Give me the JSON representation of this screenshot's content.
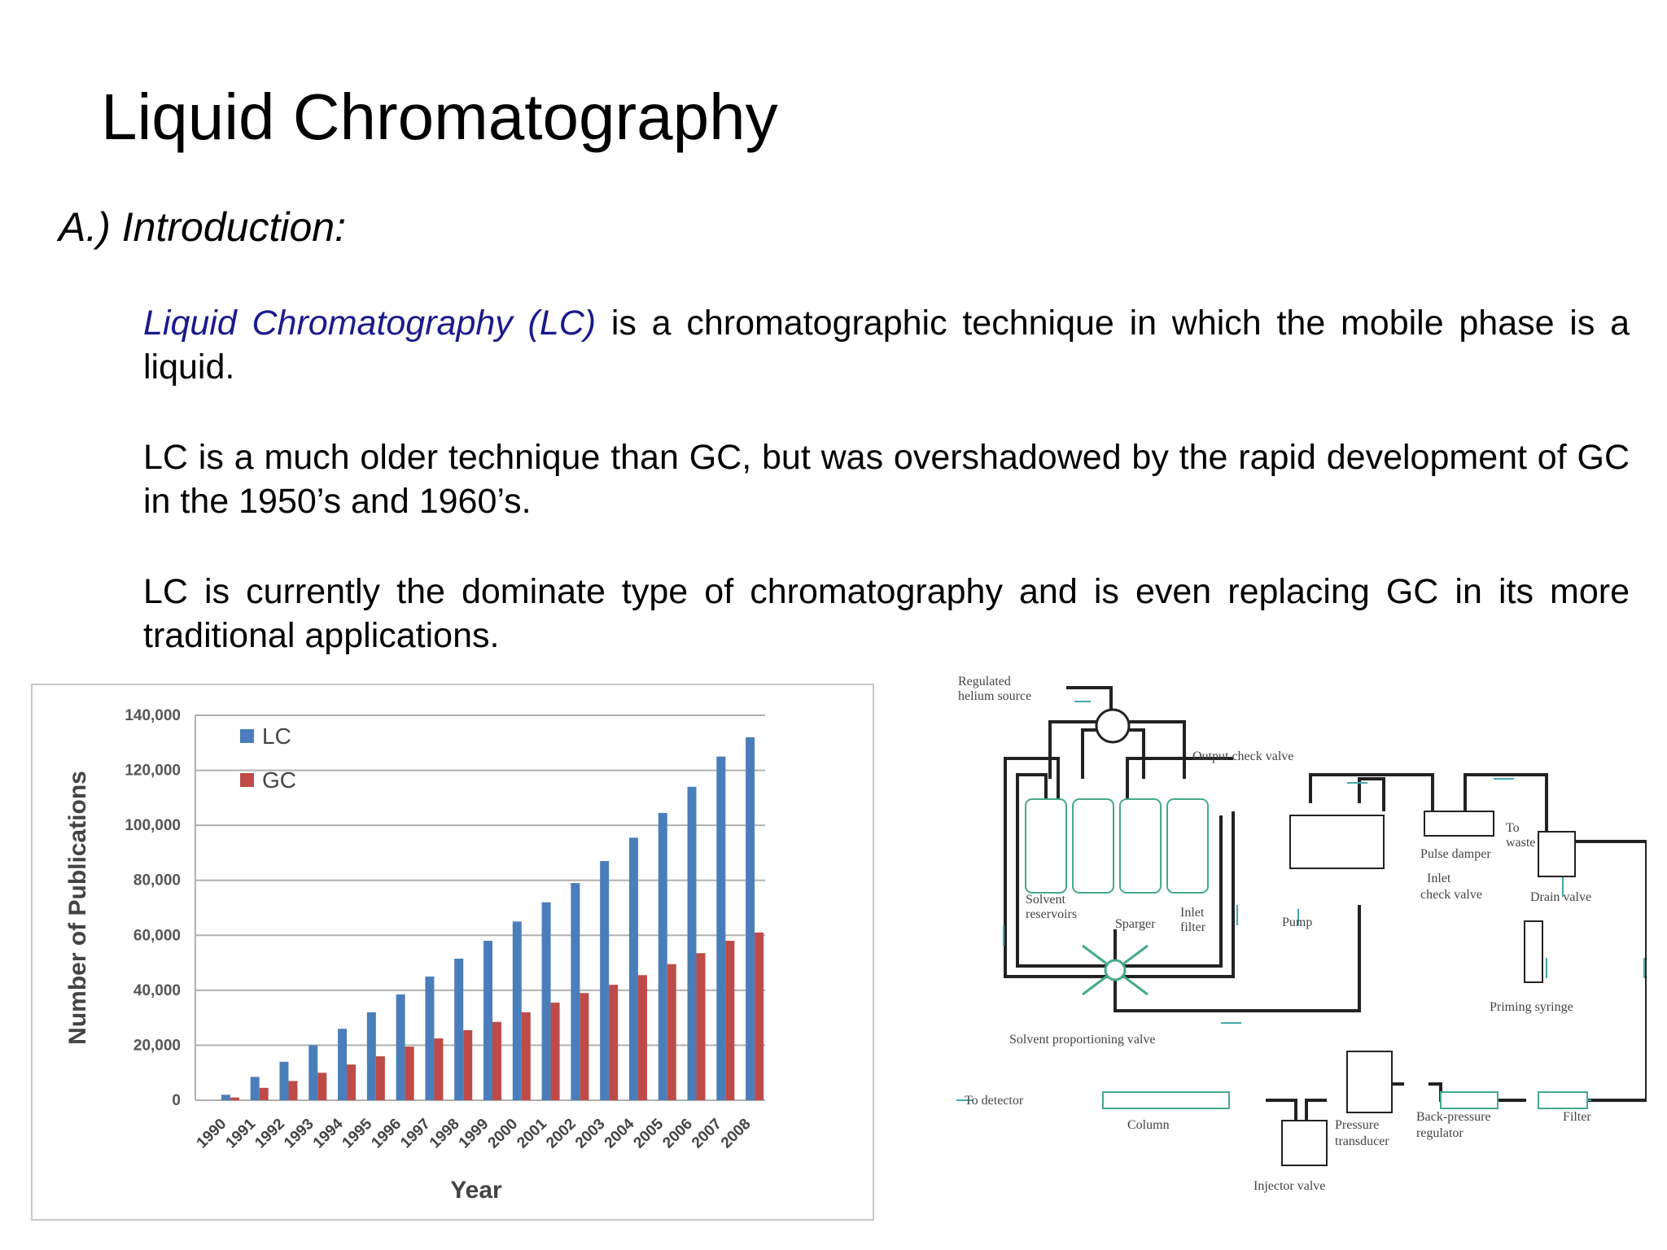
{
  "slide": {
    "title": "Liquid Chromatography",
    "section": "A.) Introduction:",
    "paragraphs": [
      {
        "term": "Liquid Chromatography (LC)",
        "text": " is a chromatographic technique in which the mobile phase is a liquid."
      },
      {
        "text": "LC is a much older technique than GC, but was overshadowed by the rapid development of GC in the 1950’s and 1960’s."
      },
      {
        "text": "LC is currently the dominate type of chromatography and is even replacing GC in its more traditional applications."
      }
    ]
  },
  "colors": {
    "lc": "#4a7ebb",
    "gc": "#be4b48",
    "term": "#1a1a8c"
  },
  "chart_data": {
    "type": "bar",
    "categories": [
      "1990",
      "1991",
      "1992",
      "1993",
      "1994",
      "1995",
      "1996",
      "1997",
      "1998",
      "1999",
      "2000",
      "2001",
      "2002",
      "2003",
      "2004",
      "2005",
      "2006",
      "2007",
      "2008"
    ],
    "series": [
      {
        "name": "LC",
        "values": [
          2000,
          8500,
          14000,
          20000,
          26000,
          32000,
          38500,
          45000,
          51500,
          58000,
          65000,
          72000,
          79000,
          87000,
          95500,
          104500,
          114000,
          125000,
          132000
        ]
      },
      {
        "name": "GC",
        "values": [
          1000,
          4500,
          7000,
          10000,
          13000,
          16000,
          19500,
          22500,
          25500,
          28500,
          32000,
          35500,
          39000,
          42000,
          45500,
          49500,
          53500,
          58000,
          61000
        ]
      }
    ],
    "xlabel": "Year",
    "ylabel": "Number of Publications",
    "ylim": [
      0,
      140000
    ],
    "yticks": [
      "0",
      "20,000",
      "40,000",
      "60,000",
      "80,000",
      "100,000",
      "120,000",
      "140,000"
    ],
    "grid": true,
    "legend": "top-left"
  },
  "diagram": {
    "labels": {
      "helium": [
        "Regulated",
        "helium source"
      ],
      "output_check_valve": "Output check valve",
      "to_waste": [
        "To",
        "waste"
      ],
      "pulse_damper": "Pulse damper",
      "inlet_check_valve": [
        "Inlet",
        "check valve"
      ],
      "drain_valve": "Drain valve",
      "solvent_reservoirs": [
        "Solvent",
        "reservoirs"
      ],
      "sparger": "Sparger",
      "inlet_filter": [
        "Inlet",
        "filter"
      ],
      "pump": "Pump",
      "priming_syringe": "Priming syringe",
      "proportioning_valve": "Solvent proportioning valve",
      "to_detector": "To detector",
      "column": "Column",
      "pressure_transducer": [
        "Pressure",
        "transducer"
      ],
      "back_pressure_regulator": [
        "Back-pressure",
        "regulator"
      ],
      "filter": "Filter",
      "injector_valve": "Injector valve"
    }
  }
}
